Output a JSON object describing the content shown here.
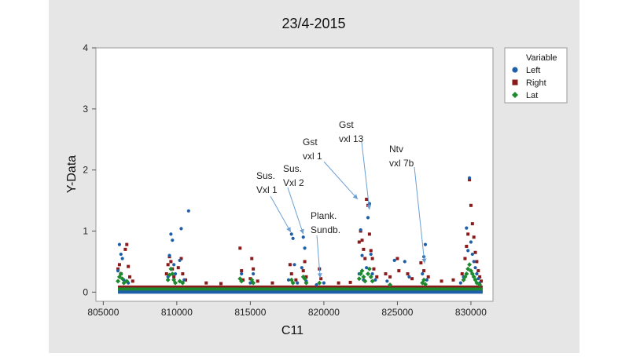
{
  "chart_data": {
    "type": "scatter",
    "title": "23/4-2015",
    "xlabel": "C11",
    "ylabel": "Y-Data",
    "xlim": [
      804500,
      831500
    ],
    "ylim": [
      -0.15,
      4
    ],
    "xticks": [
      805000,
      810000,
      815000,
      820000,
      825000,
      830000
    ],
    "yticks": [
      0,
      1,
      2,
      3,
      4
    ],
    "grid": false,
    "legend_position": "right",
    "legend": {
      "title": "Variable",
      "entries": [
        {
          "name": "Left",
          "color": "#1f5fa8",
          "marker": "circle"
        },
        {
          "name": "Right",
          "color": "#8b1a1a",
          "marker": "square"
        },
        {
          "name": "Lat",
          "color": "#1e8a2e",
          "marker": "diamond"
        }
      ]
    },
    "baseline": {
      "x_start": 806000,
      "x_end": 830800,
      "Left": 0.0,
      "Right": 0.07,
      "Lat": 0.05
    },
    "series": [
      {
        "name": "Left",
        "color": "#1f5fa8",
        "marker": "circle",
        "points": [
          [
            806100,
            0.78
          ],
          [
            806200,
            0.62
          ],
          [
            806300,
            0.55
          ],
          [
            806000,
            0.35
          ],
          [
            806400,
            0.2
          ],
          [
            806700,
            0.15
          ],
          [
            809500,
            0.6
          ],
          [
            809600,
            0.95
          ],
          [
            809700,
            0.85
          ],
          [
            809800,
            0.45
          ],
          [
            809400,
            0.25
          ],
          [
            809900,
            0.3
          ],
          [
            810300,
            1.04
          ],
          [
            810200,
            0.52
          ],
          [
            810800,
            1.33
          ],
          [
            810500,
            0.2
          ],
          [
            814400,
            0.3
          ],
          [
            815200,
            0.3
          ],
          [
            815000,
            0.15
          ],
          [
            817800,
            0.95
          ],
          [
            817900,
            0.88
          ],
          [
            818000,
            0.45
          ],
          [
            817600,
            0.2
          ],
          [
            818200,
            0.15
          ],
          [
            818600,
            0.9
          ],
          [
            818700,
            0.72
          ],
          [
            818500,
            0.4
          ],
          [
            818800,
            0.18
          ],
          [
            820000,
            0.15
          ],
          [
            819500,
            0.12
          ],
          [
            822500,
            1.02
          ],
          [
            822600,
            0.6
          ],
          [
            822400,
            0.3
          ],
          [
            822700,
            0.2
          ],
          [
            823000,
            1.22
          ],
          [
            823100,
            1.45
          ],
          [
            823200,
            0.62
          ],
          [
            822900,
            0.4
          ],
          [
            823300,
            0.3
          ],
          [
            823500,
            0.2
          ],
          [
            824800,
            0.52
          ],
          [
            825500,
            0.5
          ],
          [
            825800,
            0.25
          ],
          [
            824300,
            0.18
          ],
          [
            826800,
            0.58
          ],
          [
            826900,
            0.78
          ],
          [
            826700,
            0.3
          ],
          [
            827000,
            0.2
          ],
          [
            829700,
            1.05
          ],
          [
            829800,
            0.68
          ],
          [
            829900,
            1.87
          ],
          [
            830000,
            0.82
          ],
          [
            830100,
            0.62
          ],
          [
            830200,
            0.5
          ],
          [
            830300,
            0.4
          ],
          [
            830400,
            0.3
          ],
          [
            830500,
            0.22
          ],
          [
            830600,
            0.15
          ],
          [
            829500,
            0.25
          ],
          [
            829300,
            0.15
          ]
        ]
      },
      {
        "name": "Right",
        "color": "#8b1a1a",
        "marker": "square",
        "points": [
          [
            806000,
            0.38
          ],
          [
            806100,
            0.45
          ],
          [
            806200,
            0.3
          ],
          [
            806500,
            0.7
          ],
          [
            806600,
            0.78
          ],
          [
            806700,
            0.42
          ],
          [
            806800,
            0.25
          ],
          [
            807000,
            0.18
          ],
          [
            809300,
            0.3
          ],
          [
            809400,
            0.45
          ],
          [
            809500,
            0.58
          ],
          [
            809600,
            0.5
          ],
          [
            809700,
            0.38
          ],
          [
            809800,
            0.25
          ],
          [
            810100,
            0.4
          ],
          [
            810300,
            0.55
          ],
          [
            810400,
            0.3
          ],
          [
            810600,
            0.2
          ],
          [
            812000,
            0.15
          ],
          [
            813000,
            0.14
          ],
          [
            814300,
            0.72
          ],
          [
            814400,
            0.35
          ],
          [
            814500,
            0.2
          ],
          [
            815100,
            0.55
          ],
          [
            815200,
            0.38
          ],
          [
            815000,
            0.22
          ],
          [
            815500,
            0.18
          ],
          [
            816500,
            0.15
          ],
          [
            817700,
            0.45
          ],
          [
            817800,
            0.3
          ],
          [
            818100,
            0.2
          ],
          [
            818600,
            0.35
          ],
          [
            818700,
            0.5
          ],
          [
            818800,
            0.25
          ],
          [
            819700,
            0.38
          ],
          [
            819800,
            0.22
          ],
          [
            821000,
            0.15
          ],
          [
            821800,
            0.16
          ],
          [
            822400,
            0.82
          ],
          [
            822500,
            1.0
          ],
          [
            822600,
            0.85
          ],
          [
            822700,
            0.7
          ],
          [
            822800,
            0.55
          ],
          [
            822900,
            1.52
          ],
          [
            823000,
            1.42
          ],
          [
            823100,
            0.95
          ],
          [
            823200,
            0.68
          ],
          [
            823300,
            0.55
          ],
          [
            823400,
            0.38
          ],
          [
            823600,
            0.25
          ],
          [
            824200,
            0.3
          ],
          [
            824500,
            0.25
          ],
          [
            825000,
            0.55
          ],
          [
            825100,
            0.35
          ],
          [
            825700,
            0.3
          ],
          [
            826000,
            0.22
          ],
          [
            826600,
            0.48
          ],
          [
            826800,
            0.35
          ],
          [
            827100,
            0.25
          ],
          [
            828000,
            0.18
          ],
          [
            828800,
            0.2
          ],
          [
            829400,
            0.3
          ],
          [
            829600,
            0.55
          ],
          [
            829700,
            0.75
          ],
          [
            829800,
            0.95
          ],
          [
            829900,
            1.84
          ],
          [
            830000,
            1.42
          ],
          [
            830100,
            1.12
          ],
          [
            830200,
            0.9
          ],
          [
            830300,
            0.65
          ],
          [
            830400,
            0.5
          ],
          [
            830500,
            0.35
          ],
          [
            830600,
            0.25
          ],
          [
            830700,
            0.18
          ]
        ]
      },
      {
        "name": "Lat",
        "color": "#1e8a2e",
        "marker": "diamond",
        "points": [
          [
            806000,
            0.18
          ],
          [
            806100,
            0.25
          ],
          [
            806200,
            0.3
          ],
          [
            806300,
            0.22
          ],
          [
            806400,
            0.15
          ],
          [
            806600,
            0.18
          ],
          [
            809400,
            0.2
          ],
          [
            809500,
            0.28
          ],
          [
            809600,
            0.38
          ],
          [
            809700,
            0.3
          ],
          [
            809800,
            0.2
          ],
          [
            809900,
            0.15
          ],
          [
            810200,
            0.18
          ],
          [
            810400,
            0.15
          ],
          [
            814300,
            0.22
          ],
          [
            814400,
            0.18
          ],
          [
            815100,
            0.2
          ],
          [
            815200,
            0.15
          ],
          [
            817800,
            0.2
          ],
          [
            817900,
            0.15
          ],
          [
            818600,
            0.25
          ],
          [
            818700,
            0.22
          ],
          [
            818800,
            0.15
          ],
          [
            819700,
            0.15
          ],
          [
            822400,
            0.22
          ],
          [
            822500,
            0.3
          ],
          [
            822600,
            0.35
          ],
          [
            822700,
            0.25
          ],
          [
            822800,
            0.18
          ],
          [
            823000,
            0.3
          ],
          [
            823100,
            0.38
          ],
          [
            823200,
            0.25
          ],
          [
            823300,
            0.18
          ],
          [
            824500,
            0.12
          ],
          [
            826700,
            0.15
          ],
          [
            826800,
            0.2
          ],
          [
            826900,
            0.13
          ],
          [
            829500,
            0.2
          ],
          [
            829600,
            0.25
          ],
          [
            829700,
            0.3
          ],
          [
            829800,
            0.38
          ],
          [
            829900,
            0.45
          ],
          [
            830000,
            0.35
          ],
          [
            830100,
            0.3
          ],
          [
            830200,
            0.25
          ],
          [
            830300,
            0.2
          ],
          [
            830400,
            0.15
          ],
          [
            830600,
            0.12
          ]
        ]
      }
    ],
    "annotations": [
      {
        "lines": [
          "Sus.",
          "Vxl 1"
        ],
        "target": [
          817750,
          0.93
        ]
      },
      {
        "lines": [
          "Sus.",
          "Vxl 2"
        ],
        "target": [
          818600,
          0.9
        ]
      },
      {
        "lines": [
          "Plank.",
          "Sundb."
        ],
        "target": [
          819750,
          0.18
        ]
      },
      {
        "lines": [
          "Gst",
          "vxl 1"
        ],
        "target": [
          822300,
          1.47
        ]
      },
      {
        "lines": [
          "Gst",
          "vxl 13"
        ],
        "target": [
          823100,
          1.3
        ]
      },
      {
        "lines": [
          "Ntv",
          "vxl 7b"
        ],
        "target": [
          826850,
          0.42
        ]
      }
    ]
  }
}
